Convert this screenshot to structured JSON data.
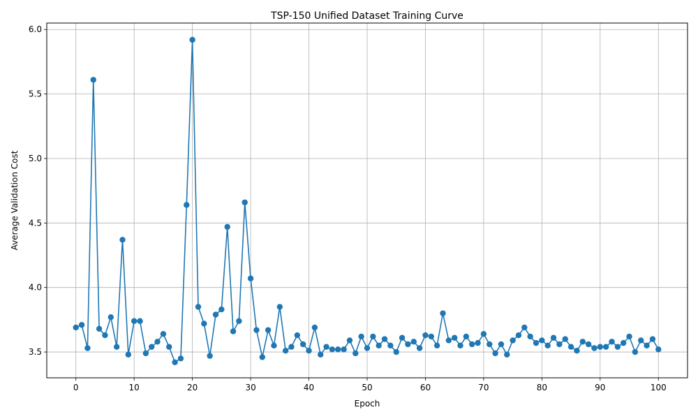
{
  "chart_data": {
    "type": "line",
    "title": "TSP-150 Unified Dataset Training Curve",
    "xlabel": "Epoch",
    "ylabel": "Average Validation Cost",
    "xlim": [
      -5,
      105
    ],
    "ylim": [
      3.3,
      6.05
    ],
    "xticks": [
      0,
      10,
      20,
      30,
      40,
      50,
      60,
      70,
      80,
      90,
      100
    ],
    "yticks": [
      3.5,
      4.0,
      4.5,
      5.0,
      5.5,
      6.0
    ],
    "xtick_labels": [
      "0",
      "10",
      "20",
      "30",
      "40",
      "50",
      "60",
      "70",
      "80",
      "90",
      "100"
    ],
    "ytick_labels": [
      "3.5",
      "4.0",
      "4.5",
      "5.0",
      "5.5",
      "6.0"
    ],
    "grid": true,
    "marker": "circle",
    "series": [
      {
        "color": "#1f77b4",
        "x": [
          0,
          1,
          2,
          3,
          4,
          5,
          6,
          7,
          8,
          9,
          10,
          11,
          12,
          13,
          14,
          15,
          16,
          17,
          18,
          19,
          20,
          21,
          22,
          23,
          24,
          25,
          26,
          27,
          28,
          29,
          30,
          31,
          32,
          33,
          34,
          35,
          36,
          37,
          38,
          39,
          40,
          41,
          42,
          43,
          44,
          45,
          46,
          47,
          48,
          49,
          50,
          51,
          52,
          53,
          54,
          55,
          56,
          57,
          58,
          59,
          60,
          61,
          62,
          63,
          64,
          65,
          66,
          67,
          68,
          69,
          70,
          71,
          72,
          73,
          74,
          75,
          76,
          77,
          78,
          79,
          80,
          81,
          82,
          83,
          84,
          85,
          86,
          87,
          88,
          89,
          90,
          91,
          92,
          93,
          94,
          95,
          96,
          97,
          98,
          99,
          100
        ],
        "y": [
          3.69,
          3.71,
          3.53,
          5.61,
          3.68,
          3.63,
          3.77,
          3.54,
          4.37,
          3.48,
          3.74,
          3.74,
          3.49,
          3.54,
          3.58,
          3.64,
          3.54,
          3.42,
          3.45,
          4.64,
          5.92,
          3.85,
          3.72,
          3.47,
          3.79,
          3.83,
          4.47,
          3.66,
          3.74,
          4.66,
          4.07,
          3.67,
          3.46,
          3.67,
          3.55,
          3.85,
          3.51,
          3.54,
          3.63,
          3.56,
          3.51,
          3.69,
          3.48,
          3.54,
          3.52,
          3.52,
          3.52,
          3.59,
          3.49,
          3.62,
          3.53,
          3.62,
          3.55,
          3.6,
          3.55,
          3.5,
          3.61,
          3.56,
          3.58,
          3.53,
          3.63,
          3.62,
          3.55,
          3.8,
          3.59,
          3.61,
          3.55,
          3.62,
          3.56,
          3.57,
          3.64,
          3.56,
          3.49,
          3.56,
          3.48,
          3.59,
          3.63,
          3.69,
          3.62,
          3.57,
          3.59,
          3.55,
          3.61,
          3.56,
          3.6,
          3.54,
          3.51,
          3.58,
          3.56,
          3.53,
          3.54,
          3.54,
          3.58,
          3.54,
          3.57,
          3.62,
          3.5,
          3.59,
          3.55,
          3.6,
          3.52
        ]
      }
    ]
  }
}
